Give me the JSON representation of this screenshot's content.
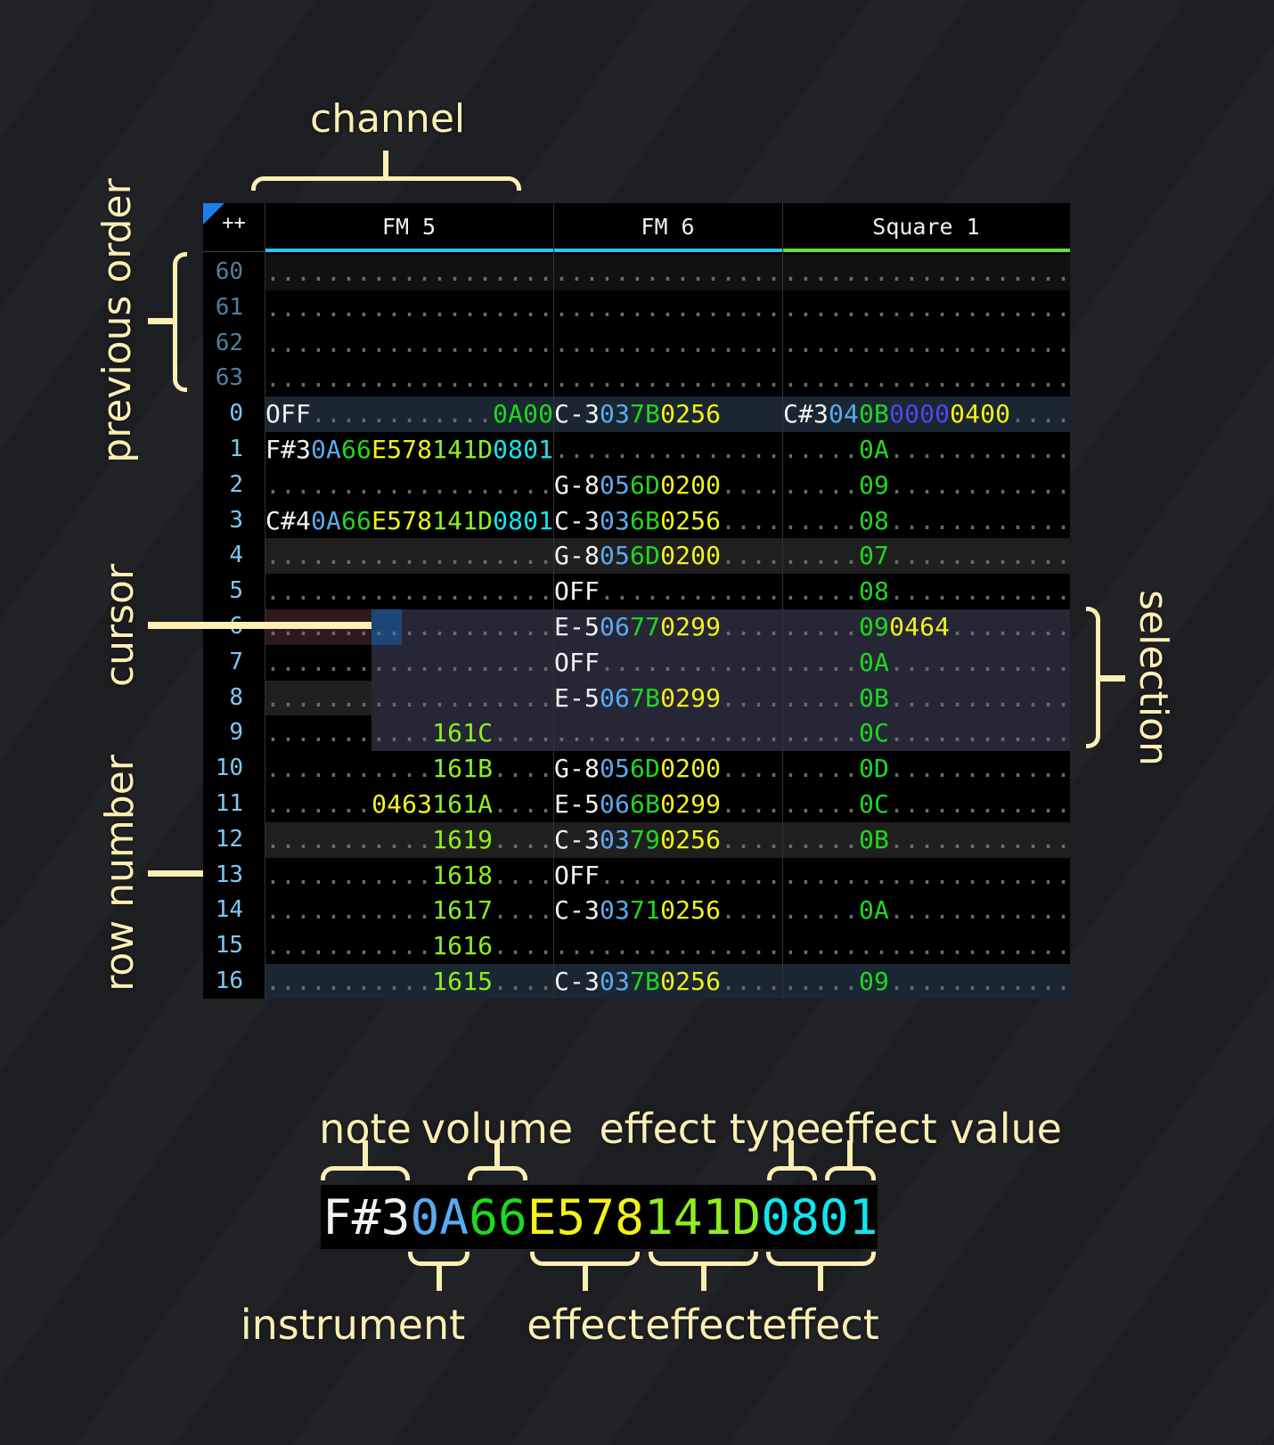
{
  "annotations": {
    "channel": "channel",
    "previous_order": "previous order",
    "cursor": "cursor",
    "row_number": "row number",
    "selection": "selection",
    "note": "note",
    "volume": "volume",
    "effect_type": "effect type",
    "effect_value": "effect value",
    "instrument": "instrument",
    "effect_1": "effect",
    "effect_2": "effect",
    "effect_3": "effect"
  },
  "example": [
    [
      "F#3",
      "n"
    ],
    [
      "0A",
      "i"
    ],
    [
      "66",
      "v"
    ],
    [
      "E578",
      "y"
    ],
    [
      "141D",
      "g"
    ],
    [
      "0801",
      "c"
    ]
  ],
  "colors": {
    "n": "#f2f2f2",
    "i": "#5aaaf0",
    "v": "#1fd81f",
    "y": "#f2f21a",
    "g": "#8ef01a",
    "c": "#12e6ee",
    "p": "#4a4af0",
    "d": "#6a6a6a",
    "rownum": "#7ec8f2",
    "rownum_prev": "#4f7f9f",
    "annotation": "#fbefb4"
  },
  "header": {
    "corner": "++",
    "channels": [
      {
        "name": "FM 5",
        "color": "#2ec2f2"
      },
      {
        "name": "FM 6",
        "color": "#2ec2f2"
      },
      {
        "name": "Square 1",
        "color": "#5fe23a"
      }
    ]
  },
  "selection": {
    "rows": [
      6,
      9
    ]
  },
  "cursor": {
    "row": 6,
    "channel": "FM 5",
    "column": "instrument"
  },
  "rows": [
    {
      "num": "60",
      "prev": true,
      "cells": [
        [
          [
            "...................",
            "d"
          ]
        ],
        [
          [
            "...............",
            "d"
          ]
        ],
        [
          [
            "...................",
            "d"
          ]
        ]
      ]
    },
    {
      "num": "61",
      "prev": true,
      "cells": [
        [
          [
            "...................",
            "d"
          ]
        ],
        [
          [
            "...............",
            "d"
          ]
        ],
        [
          [
            "...................",
            "d"
          ]
        ]
      ]
    },
    {
      "num": "62",
      "prev": true,
      "cells": [
        [
          [
            "...................",
            "d"
          ]
        ],
        [
          [
            "...............",
            "d"
          ]
        ],
        [
          [
            "...................",
            "d"
          ]
        ]
      ]
    },
    {
      "num": "63",
      "prev": true,
      "cells": [
        [
          [
            "...................",
            "d"
          ]
        ],
        [
          [
            "...............",
            "d"
          ]
        ],
        [
          [
            "...................",
            "d"
          ]
        ]
      ]
    },
    {
      "num": "0",
      "cells": [
        [
          [
            "OFF",
            "n"
          ],
          [
            "............",
            "d"
          ],
          [
            "0A00",
            "v"
          ]
        ],
        [
          [
            "C-3",
            "n"
          ],
          [
            "03",
            "i"
          ],
          [
            "7B",
            "v"
          ],
          [
            "0256",
            "y"
          ]
        ],
        [
          [
            "C#3",
            "n"
          ],
          [
            "04",
            "i"
          ],
          [
            "0B",
            "v"
          ],
          [
            "0000",
            "p"
          ],
          [
            "0400",
            "y"
          ],
          [
            "....",
            "d"
          ]
        ]
      ]
    },
    {
      "num": "1",
      "cells": [
        [
          [
            "F#3",
            "n"
          ],
          [
            "0A",
            "i"
          ],
          [
            "66",
            "v"
          ],
          [
            "E578",
            "y"
          ],
          [
            "141D",
            "g"
          ],
          [
            "0801",
            "c"
          ]
        ],
        [
          [
            "...............",
            "d"
          ]
        ],
        [
          [
            ".....",
            "d"
          ],
          [
            "0A",
            "v"
          ],
          [
            "............",
            "d"
          ]
        ]
      ]
    },
    {
      "num": "2",
      "cells": [
        [
          [
            "...................",
            "d"
          ]
        ],
        [
          [
            "G-8",
            "n"
          ],
          [
            "05",
            "i"
          ],
          [
            "6D",
            "v"
          ],
          [
            "0200",
            "y"
          ],
          [
            "....",
            "d"
          ]
        ],
        [
          [
            ".....",
            "d"
          ],
          [
            "09",
            "v"
          ],
          [
            "............",
            "d"
          ]
        ]
      ]
    },
    {
      "num": "3",
      "cells": [
        [
          [
            "C#4",
            "n"
          ],
          [
            "0A",
            "i"
          ],
          [
            "66",
            "v"
          ],
          [
            "E578",
            "y"
          ],
          [
            "141D",
            "g"
          ],
          [
            "0801",
            "c"
          ]
        ],
        [
          [
            "C-3",
            "n"
          ],
          [
            "03",
            "i"
          ],
          [
            "6B",
            "v"
          ],
          [
            "0256",
            "y"
          ],
          [
            "....",
            "d"
          ]
        ],
        [
          [
            ".....",
            "d"
          ],
          [
            "08",
            "v"
          ],
          [
            "............",
            "d"
          ]
        ]
      ]
    },
    {
      "num": "4",
      "cells": [
        [
          [
            "...................",
            "d"
          ]
        ],
        [
          [
            "G-8",
            "n"
          ],
          [
            "05",
            "i"
          ],
          [
            "6D",
            "v"
          ],
          [
            "0200",
            "y"
          ],
          [
            "....",
            "d"
          ]
        ],
        [
          [
            ".....",
            "d"
          ],
          [
            "07",
            "v"
          ],
          [
            "............",
            "d"
          ]
        ]
      ]
    },
    {
      "num": "5",
      "cells": [
        [
          [
            "...................",
            "d"
          ]
        ],
        [
          [
            "OFF",
            "n"
          ],
          [
            "............",
            "d"
          ]
        ],
        [
          [
            ".....",
            "d"
          ],
          [
            "08",
            "v"
          ],
          [
            "............",
            "d"
          ]
        ]
      ]
    },
    {
      "num": "6",
      "cells": [
        [
          [
            "...................",
            "d"
          ]
        ],
        [
          [
            "E-5",
            "n"
          ],
          [
            "06",
            "i"
          ],
          [
            "77",
            "v"
          ],
          [
            "0299",
            "y"
          ],
          [
            "....",
            "d"
          ]
        ],
        [
          [
            ".....",
            "d"
          ],
          [
            "09",
            "v"
          ],
          [
            "0464",
            "y"
          ],
          [
            "........",
            "d"
          ]
        ]
      ]
    },
    {
      "num": "7",
      "cells": [
        [
          [
            "...................",
            "d"
          ]
        ],
        [
          [
            "OFF",
            "n"
          ],
          [
            "............",
            "d"
          ]
        ],
        [
          [
            ".....",
            "d"
          ],
          [
            "0A",
            "v"
          ],
          [
            "............",
            "d"
          ]
        ]
      ]
    },
    {
      "num": "8",
      "cells": [
        [
          [
            "...................",
            "d"
          ]
        ],
        [
          [
            "E-5",
            "n"
          ],
          [
            "06",
            "i"
          ],
          [
            "7B",
            "v"
          ],
          [
            "0299",
            "y"
          ],
          [
            "....",
            "d"
          ]
        ],
        [
          [
            ".....",
            "d"
          ],
          [
            "0B",
            "v"
          ],
          [
            "............",
            "d"
          ]
        ]
      ]
    },
    {
      "num": "9",
      "cells": [
        [
          [
            "...........",
            "d"
          ],
          [
            "161C",
            "g"
          ],
          [
            "....",
            "d"
          ]
        ],
        [
          [
            "...............",
            "d"
          ]
        ],
        [
          [
            ".....",
            "d"
          ],
          [
            "0C",
            "v"
          ],
          [
            "............",
            "d"
          ]
        ]
      ]
    },
    {
      "num": "10",
      "cells": [
        [
          [
            "...........",
            "d"
          ],
          [
            "161B",
            "g"
          ],
          [
            "....",
            "d"
          ]
        ],
        [
          [
            "G-8",
            "n"
          ],
          [
            "05",
            "i"
          ],
          [
            "6D",
            "v"
          ],
          [
            "0200",
            "y"
          ],
          [
            "....",
            "d"
          ]
        ],
        [
          [
            ".....",
            "d"
          ],
          [
            "0D",
            "v"
          ],
          [
            "............",
            "d"
          ]
        ]
      ]
    },
    {
      "num": "11",
      "cells": [
        [
          [
            ".......",
            "d"
          ],
          [
            "0463",
            "y"
          ],
          [
            "161A",
            "g"
          ],
          [
            "....",
            "d"
          ]
        ],
        [
          [
            "E-5",
            "n"
          ],
          [
            "06",
            "i"
          ],
          [
            "6B",
            "v"
          ],
          [
            "0299",
            "y"
          ],
          [
            "....",
            "d"
          ]
        ],
        [
          [
            ".....",
            "d"
          ],
          [
            "0C",
            "v"
          ],
          [
            "............",
            "d"
          ]
        ]
      ]
    },
    {
      "num": "12",
      "cells": [
        [
          [
            "...........",
            "d"
          ],
          [
            "1619",
            "g"
          ],
          [
            "....",
            "d"
          ]
        ],
        [
          [
            "C-3",
            "n"
          ],
          [
            "03",
            "i"
          ],
          [
            "79",
            "v"
          ],
          [
            "0256",
            "y"
          ],
          [
            "....",
            "d"
          ]
        ],
        [
          [
            ".....",
            "d"
          ],
          [
            "0B",
            "v"
          ],
          [
            "............",
            "d"
          ]
        ]
      ]
    },
    {
      "num": "13",
      "cells": [
        [
          [
            "...........",
            "d"
          ],
          [
            "1618",
            "g"
          ],
          [
            "....",
            "d"
          ]
        ],
        [
          [
            "OFF",
            "n"
          ],
          [
            "............",
            "d"
          ]
        ],
        [
          [
            "...................",
            "d"
          ]
        ]
      ]
    },
    {
      "num": "14",
      "cells": [
        [
          [
            "...........",
            "d"
          ],
          [
            "1617",
            "g"
          ],
          [
            "....",
            "d"
          ]
        ],
        [
          [
            "C-3",
            "n"
          ],
          [
            "03",
            "i"
          ],
          [
            "71",
            "v"
          ],
          [
            "0256",
            "y"
          ],
          [
            "....",
            "d"
          ]
        ],
        [
          [
            ".....",
            "d"
          ],
          [
            "0A",
            "v"
          ],
          [
            "............",
            "d"
          ]
        ]
      ]
    },
    {
      "num": "15",
      "cells": [
        [
          [
            "...........",
            "d"
          ],
          [
            "1616",
            "g"
          ],
          [
            "....",
            "d"
          ]
        ],
        [
          [
            "...............",
            "d"
          ]
        ],
        [
          [
            "...................",
            "d"
          ]
        ]
      ]
    },
    {
      "num": "16",
      "cells": [
        [
          [
            "...........",
            "d"
          ],
          [
            "1615",
            "g"
          ],
          [
            "....",
            "d"
          ]
        ],
        [
          [
            "C-3",
            "n"
          ],
          [
            "03",
            "i"
          ],
          [
            "7B",
            "v"
          ],
          [
            "0256",
            "y"
          ],
          [
            "....",
            "d"
          ]
        ],
        [
          [
            ".....",
            "d"
          ],
          [
            "09",
            "v"
          ],
          [
            "............",
            "d"
          ]
        ]
      ]
    }
  ]
}
